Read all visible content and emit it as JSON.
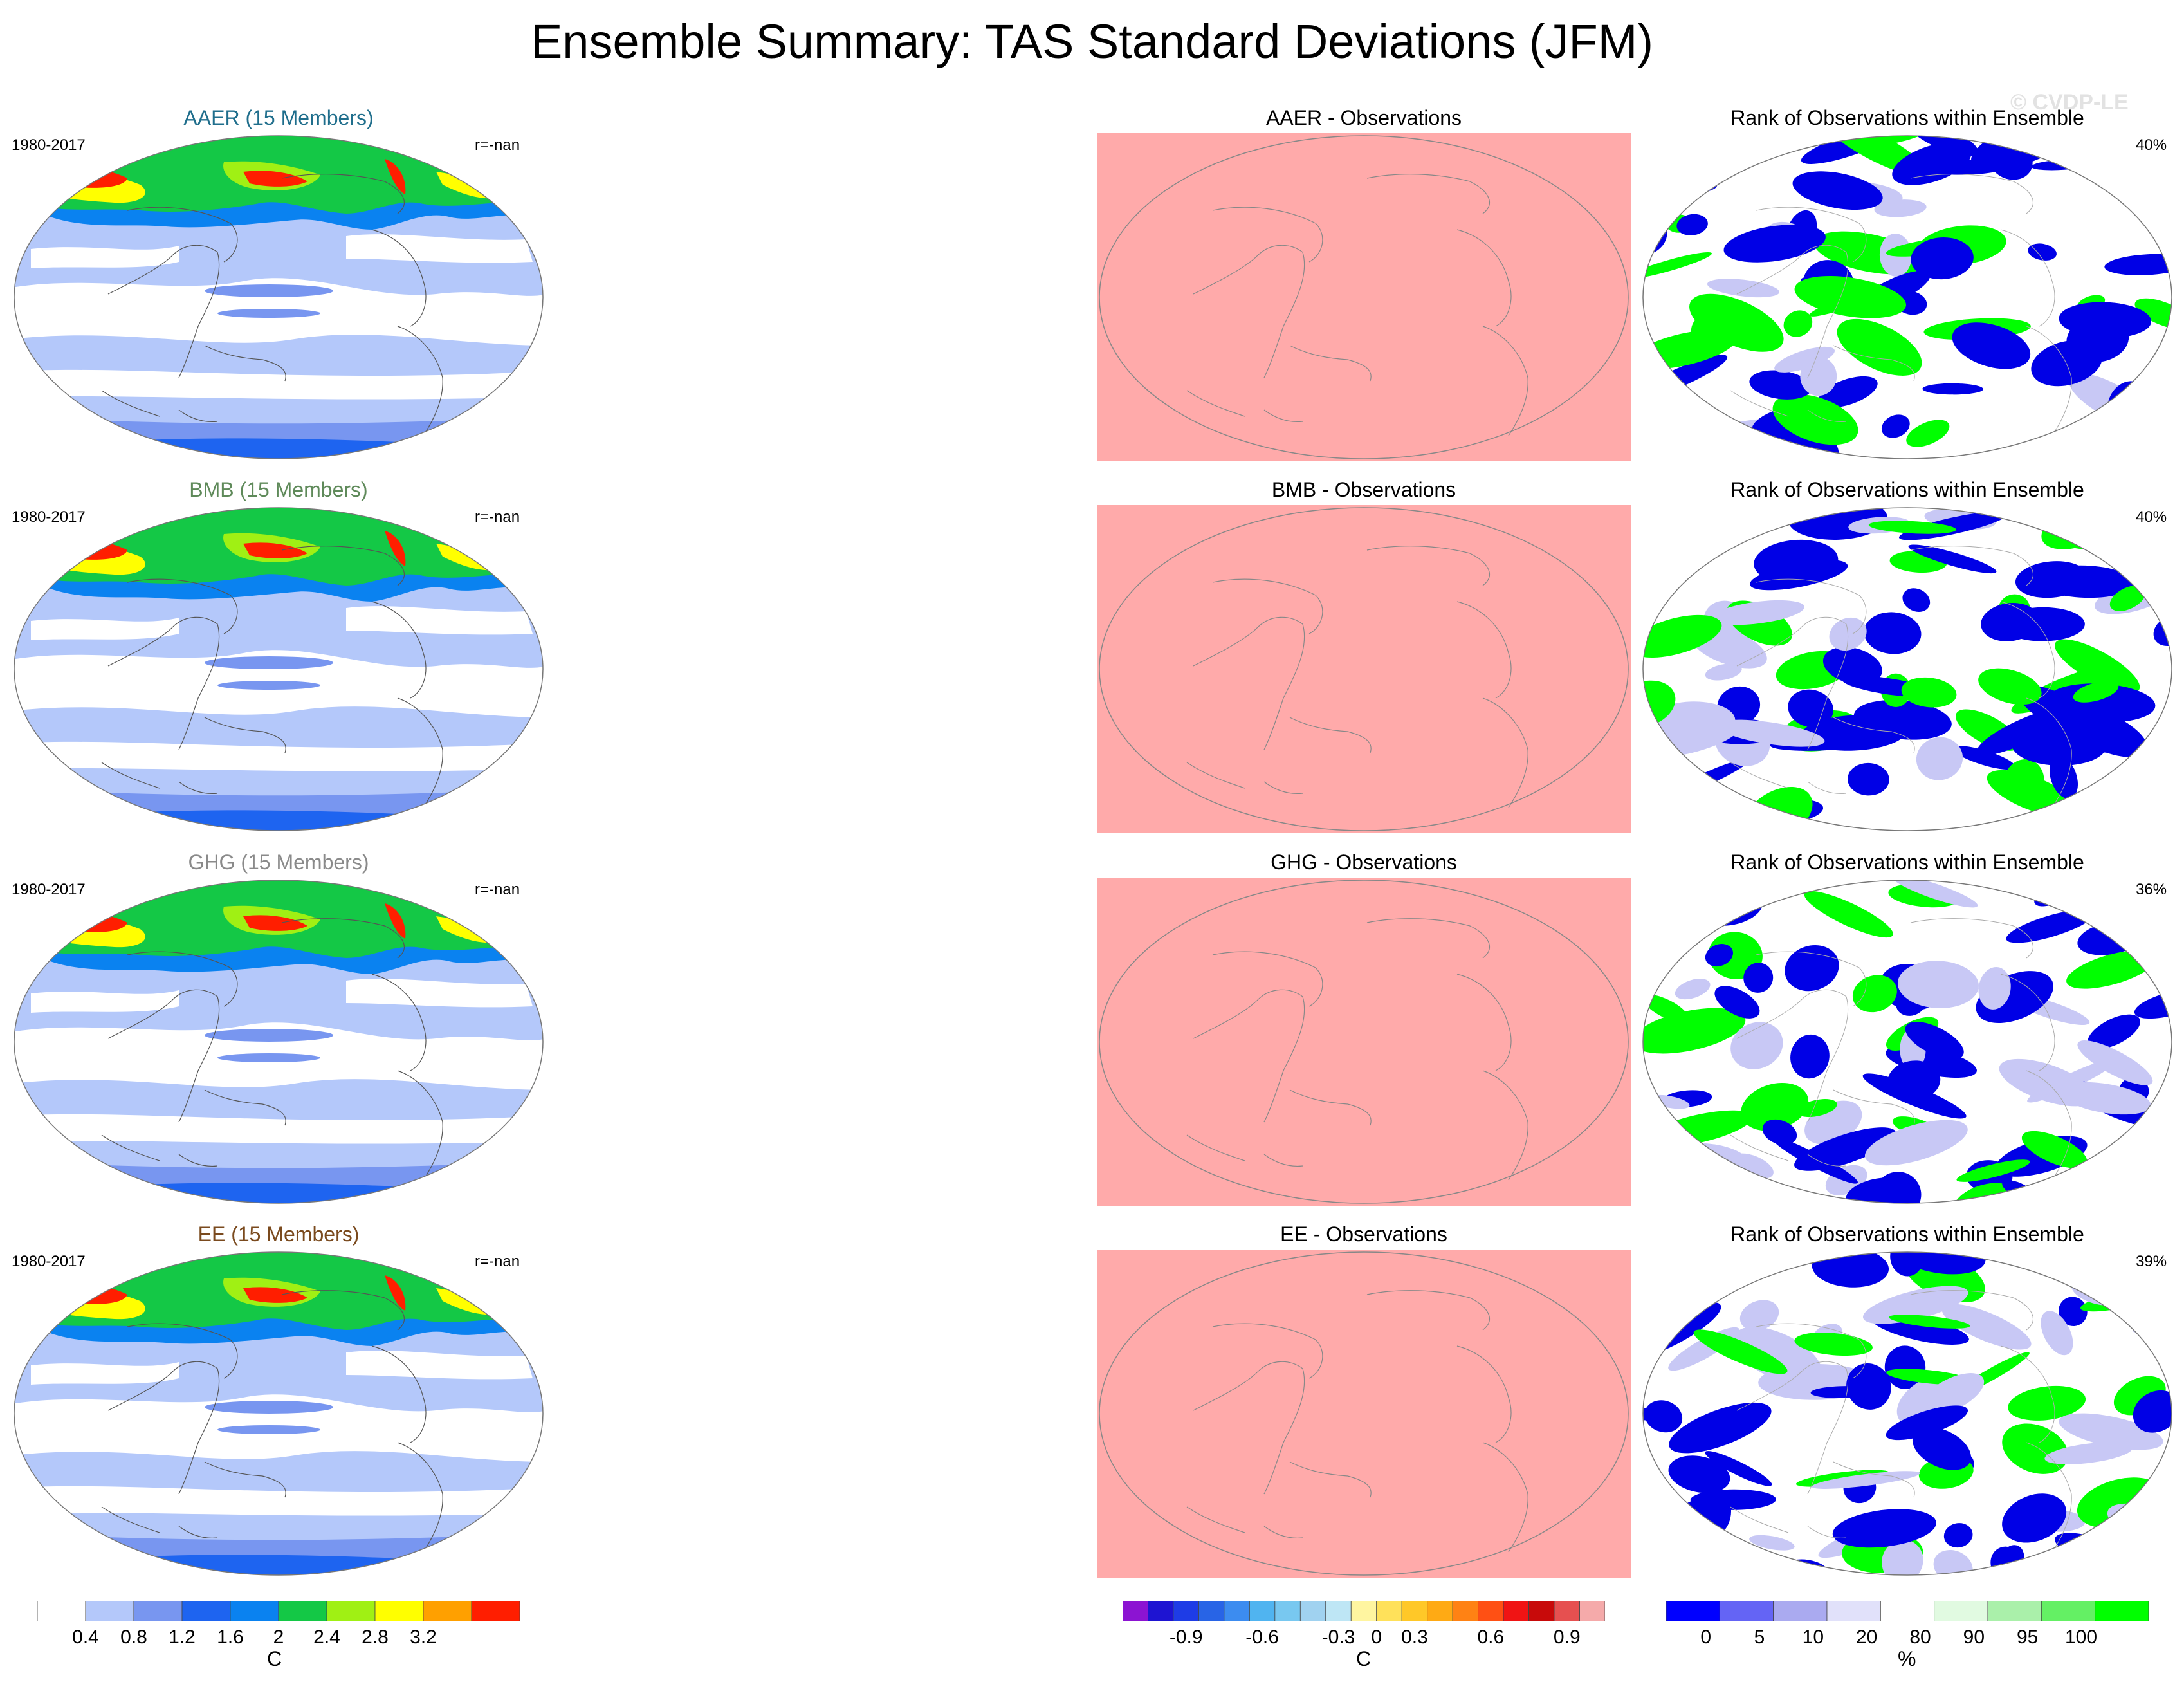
{
  "title": "Ensemble Summary: TAS Standard Deviations (JFM)",
  "watermark": "© CVDP-LE",
  "rows": [
    {
      "name": "AAER (15 Members)",
      "name_color": "#1f6e8c",
      "period": "1980-2017",
      "corr": "r=-nan",
      "diff_title": "AAER - Observations",
      "rank_title": "Rank of Observations within Ensemble",
      "rank_pct": "40%"
    },
    {
      "name": "BMB (15 Members)",
      "name_color": "#5f8a5a",
      "period": "1980-2017",
      "corr": "r=-nan",
      "diff_title": "BMB - Observations",
      "rank_title": "Rank of Observations within Ensemble",
      "rank_pct": "40%"
    },
    {
      "name": "GHG (15 Members)",
      "name_color": "#8a8a8a",
      "period": "1980-2017",
      "corr": "r=-nan",
      "diff_title": "GHG - Observations",
      "rank_title": "Rank of Observations within Ensemble",
      "rank_pct": "36%"
    },
    {
      "name": "EE (15 Members)",
      "name_color": "#7a4a1e",
      "period": "1980-2017",
      "corr": "r=-nan",
      "diff_title": "EE - Observations",
      "rank_title": "Rank of Observations within Ensemble",
      "rank_pct": "39%"
    }
  ],
  "colorbars": {
    "stddev": {
      "labels": [
        "0.4",
        "0.8",
        "1.2",
        "1.6",
        "2",
        "2.4",
        "2.8",
        "3.2"
      ],
      "unit": "C",
      "colors": [
        "#ffffff",
        "#b4c8fa",
        "#7896f0",
        "#1e64f0",
        "#0a82f0",
        "#14c846",
        "#a0f014",
        "#ffff00",
        "#ffa000",
        "#ff1e00"
      ]
    },
    "diff": {
      "labels": [
        "-0.9",
        "-0.6",
        "-0.3",
        "0",
        "0.3",
        "0.6",
        "0.9"
      ],
      "unit": "C",
      "colors": [
        "#8c14d2",
        "#1e14d2",
        "#1e3ce6",
        "#2864e6",
        "#3c8cf0",
        "#50b4f0",
        "#78c8f0",
        "#a0d2f0",
        "#bee6f5",
        "#fff5a0",
        "#ffe15a",
        "#ffc828",
        "#ffaa14",
        "#ff8214",
        "#ff5014",
        "#f01414",
        "#c80a0a",
        "#e65050",
        "#f5aaaa"
      ]
    },
    "rank": {
      "labels": [
        "0",
        "5",
        "10",
        "20",
        "80",
        "90",
        "95",
        "100"
      ],
      "unit": "%",
      "colors": [
        "#0000ff",
        "#6464f5",
        "#aaaaf0",
        "#e1e1fa",
        "#ffffff",
        "#e1fae1",
        "#aaf0aa",
        "#64f064",
        "#00ff00"
      ]
    }
  },
  "map_colors": {
    "diff_fill": "#ffaaaa",
    "rank_blue": "#0000e6",
    "rank_green": "#00ff00",
    "rank_lav": "#c8c8f5"
  }
}
